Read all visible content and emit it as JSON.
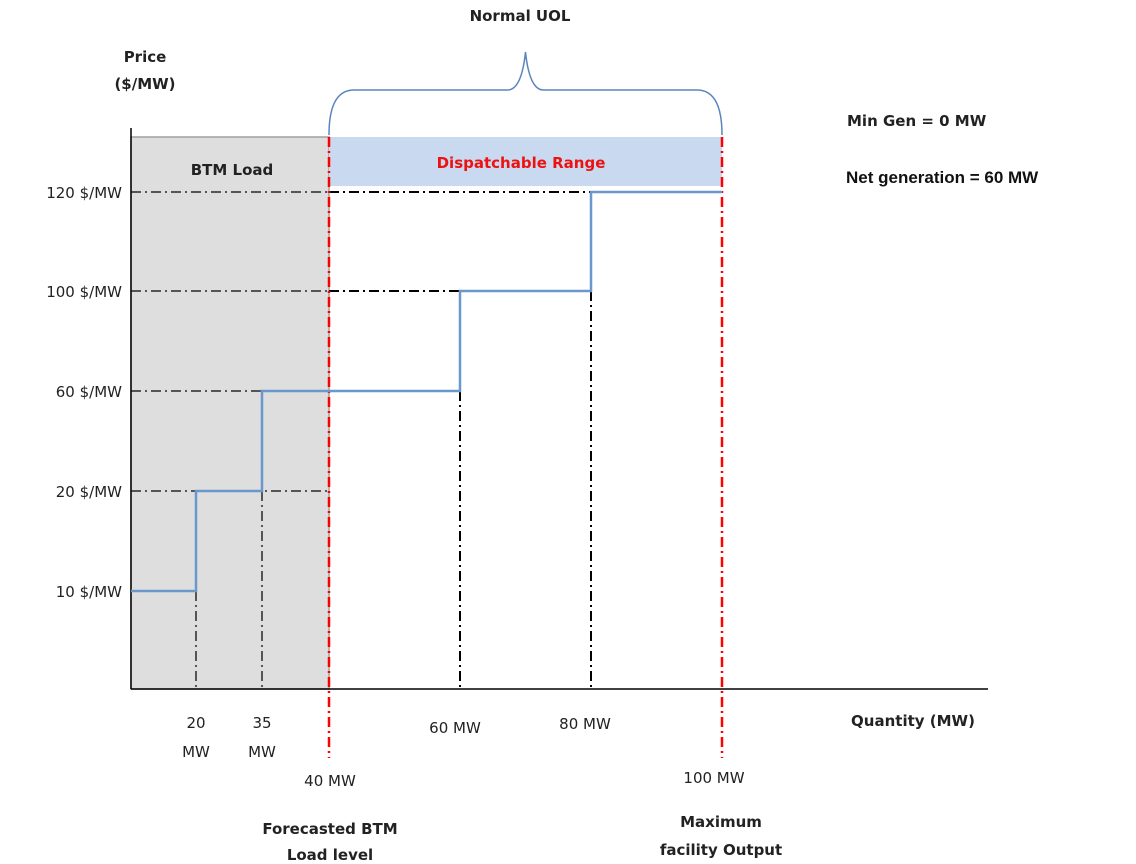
{
  "chart_data": {
    "type": "line",
    "step": true,
    "xlabel": "Quantity (MW)",
    "ylabel_line1": "Price",
    "ylabel_line2": "($/MW)",
    "y_ticks": [
      "120 $/MW",
      "100 $/MW",
      "60 $/MW",
      "20 $/MW",
      "10 $/MW"
    ],
    "y_tick_values": [
      120,
      100,
      60,
      20,
      10
    ],
    "x_ticks": [
      {
        "value": 20,
        "line1": "20",
        "line2": "MW"
      },
      {
        "value": 35,
        "line1": "35",
        "line2": "MW"
      },
      {
        "value": 40,
        "line1": "40 MW",
        "line2": ""
      },
      {
        "value": 60,
        "line1": "60 MW",
        "line2": ""
      },
      {
        "value": 80,
        "line1": "80 MW",
        "line2": ""
      },
      {
        "value": 100,
        "line1": "100 MW",
        "line2": ""
      }
    ],
    "steps": [
      {
        "from": 0,
        "to": 20,
        "price": 10
      },
      {
        "from": 20,
        "to": 35,
        "price": 20
      },
      {
        "from": 35,
        "to": 60,
        "price": 60
      },
      {
        "from": 60,
        "to": 80,
        "price": 100
      },
      {
        "from": 80,
        "to": 100,
        "price": 120
      }
    ],
    "btm_load": {
      "label": "BTM Load",
      "from": 0,
      "to": 40
    },
    "dispatchable_range": {
      "label": "Dispatchable Range",
      "from": 40,
      "to": 100
    },
    "brace_label": "Normal UOL",
    "forecast_label_line1": "Forecasted BTM",
    "forecast_label_line2": "Load level",
    "max_label_line1": "Maximum",
    "max_label_line2": "facility Output",
    "notes": [
      "Min Gen = 0 MW",
      "Net generation = 60 MW"
    ],
    "colors": {
      "step_line": "#6a97cc",
      "red_marker": "#ff0000",
      "btm_fill": "#dedede",
      "dispatch_fill": "#c9d9ef",
      "dispatch_text": "#ee1111"
    }
  }
}
